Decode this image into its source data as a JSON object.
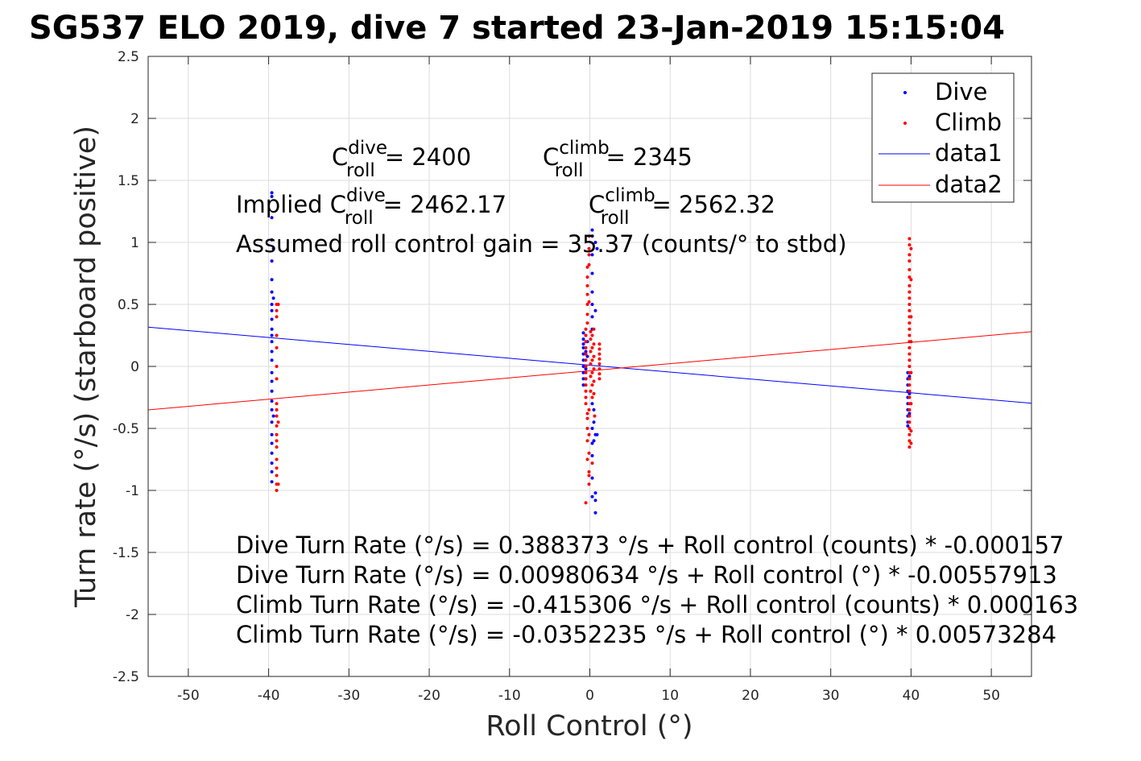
{
  "colors": {
    "dive": "#0000ff",
    "climb": "#ff0000",
    "grid": "#dcdcdc",
    "axis": "#262626"
  },
  "annotations": {
    "c_dive_base": "C",
    "c_dive_sup": "dive",
    "c_dive_sub": "roll",
    "c_dive_val": "= 2400",
    "c_climb_base": "C",
    "c_climb_sup": "climb",
    "c_climb_sub": "roll",
    "c_climb_val": "= 2345",
    "implied_prefix": "Implied C",
    "implied_dive_sup": "dive",
    "implied_dive_sub": "roll",
    "implied_dive_val": "= 2462.17",
    "implied_climb_base": "C",
    "implied_climb_sup": "climb",
    "implied_climb_sub": "roll",
    "implied_climb_val": "= 2562.32",
    "gain": "Assumed roll control gain = 35.37 (counts/° to stbd)",
    "eq1": "Dive Turn Rate (°/s) = 0.388373 °/s + Roll control (counts) * -0.000157",
    "eq2": "Dive Turn Rate (°/s) = 0.00980634 °/s + Roll control (°) * -0.00557913",
    "eq3": "Climb Turn Rate (°/s) = -0.415306 °/s + Roll control (counts) * 0.000163",
    "eq4": "Climb Turn Rate (°/s) = -0.0352235 °/s + Roll control (°) * 0.00573284"
  },
  "chart_data": {
    "type": "scatter",
    "title": "SG537 ELO 2019, dive 7 started 23-Jan-2019 15:15:04",
    "xlabel": "Roll Control (°)",
    "ylabel": "Turn rate (°/s) (starboard positive)",
    "xlim": [
      -55,
      55
    ],
    "ylim": [
      -2.5,
      2.5
    ],
    "xticks": [
      -50,
      -40,
      -30,
      -20,
      -10,
      0,
      10,
      20,
      30,
      40,
      50
    ],
    "yticks": [
      -2.5,
      -2,
      -1.5,
      -1,
      -0.5,
      0,
      0.5,
      1,
      1.5,
      2,
      2.5
    ],
    "grid": true,
    "legend_position": "top-right",
    "legend": [
      "Dive",
      "Climb",
      "data1",
      "data2"
    ],
    "series": [
      {
        "name": "Dive",
        "kind": "points",
        "color": "#0000ff",
        "points": [
          [
            -39.6,
            1.4
          ],
          [
            -39.6,
            1.37
          ],
          [
            -39.6,
            1.2
          ],
          [
            -39.6,
            1.02
          ],
          [
            -39.6,
            0.85
          ],
          [
            -39.6,
            0.7
          ],
          [
            -39.6,
            0.6
          ],
          [
            -39.6,
            0.5
          ],
          [
            -39.6,
            0.45
          ],
          [
            -39.6,
            0.38
          ],
          [
            -39.6,
            0.3
          ],
          [
            -39.6,
            0.25
          ],
          [
            -39.6,
            0.2
          ],
          [
            -39.6,
            0.12
          ],
          [
            -39.6,
            0.05
          ],
          [
            -39.6,
            -0.05
          ],
          [
            -39.6,
            -0.12
          ],
          [
            -39.6,
            -0.2
          ],
          [
            -39.6,
            -0.28
          ],
          [
            -39.6,
            -0.35
          ],
          [
            -39.6,
            -0.45
          ],
          [
            -39.6,
            -0.55
          ],
          [
            -39.6,
            -0.62
          ],
          [
            -39.6,
            -0.7
          ],
          [
            -39.6,
            -0.78
          ],
          [
            -39.6,
            -0.85
          ],
          [
            -39.6,
            -0.93
          ],
          [
            -39.4,
            0.95
          ],
          [
            -39.4,
            0.55
          ],
          [
            -39.4,
            -0.4
          ],
          [
            -0.8,
            0.27
          ],
          [
            -0.8,
            0.22
          ],
          [
            -0.8,
            0.18
          ],
          [
            -0.8,
            0.15
          ],
          [
            -0.8,
            0.1
          ],
          [
            -0.8,
            0.05
          ],
          [
            -0.8,
            0.0
          ],
          [
            -0.8,
            -0.05
          ],
          [
            -0.8,
            -0.1
          ],
          [
            -0.8,
            -0.15
          ],
          [
            -0.5,
            0.25
          ],
          [
            -0.5,
            0.12
          ],
          [
            -0.5,
            -0.02
          ],
          [
            -0.5,
            -0.1
          ],
          [
            -0.3,
            0.2
          ],
          [
            -0.3,
            0.08
          ],
          [
            0.3,
            1.1
          ],
          [
            0.3,
            1.05
          ],
          [
            0.3,
            0.9
          ],
          [
            0.3,
            0.75
          ],
          [
            0.3,
            0.6
          ],
          [
            0.3,
            0.5
          ],
          [
            0.3,
            0.4
          ],
          [
            0.3,
            0.3
          ],
          [
            0.3,
            -0.3
          ],
          [
            0.3,
            -0.5
          ],
          [
            0.3,
            -0.62
          ],
          [
            0.3,
            -0.72
          ],
          [
            0.3,
            -0.9
          ],
          [
            0.3,
            -1.05
          ],
          [
            0.5,
            -0.35
          ],
          [
            0.5,
            -0.45
          ],
          [
            0.5,
            -0.6
          ],
          [
            0.7,
            1.0
          ],
          [
            0.7,
            0.45
          ],
          [
            0.7,
            -0.55
          ],
          [
            0.7,
            -1.02
          ],
          [
            0.7,
            -1.08
          ],
          [
            0.7,
            -1.18
          ],
          [
            0.9,
            0.95
          ],
          [
            0.9,
            -0.55
          ],
          [
            39.6,
            -0.05
          ],
          [
            39.6,
            -0.1
          ],
          [
            39.6,
            -0.15
          ],
          [
            39.6,
            -0.2
          ],
          [
            39.6,
            -0.25
          ],
          [
            39.6,
            -0.3
          ],
          [
            39.6,
            -0.35
          ],
          [
            39.6,
            -0.4
          ],
          [
            39.6,
            -0.45
          ],
          [
            39.6,
            -0.48
          ],
          [
            39.8,
            -0.08
          ],
          [
            39.8,
            -0.22
          ],
          [
            39.8,
            -0.38
          ]
        ]
      },
      {
        "name": "Climb",
        "kind": "points",
        "color": "#ff0000",
        "points": [
          [
            -39.0,
            0.5
          ],
          [
            -39.0,
            0.45
          ],
          [
            -39.0,
            0.4
          ],
          [
            -39.0,
            0.25
          ],
          [
            -39.0,
            0.15
          ],
          [
            -39.0,
            0.0
          ],
          [
            -39.0,
            -0.1
          ],
          [
            -39.0,
            -0.3
          ],
          [
            -39.0,
            -0.35
          ],
          [
            -39.0,
            -0.4
          ],
          [
            -39.0,
            -0.48
          ],
          [
            -39.0,
            -0.55
          ],
          [
            -39.0,
            -0.6
          ],
          [
            -39.0,
            -0.65
          ],
          [
            -39.0,
            -0.75
          ],
          [
            -39.0,
            -0.82
          ],
          [
            -39.0,
            -0.88
          ],
          [
            -39.0,
            -0.95
          ],
          [
            -39.0,
            -1.0
          ],
          [
            -38.8,
            0.5
          ],
          [
            -38.8,
            -0.45
          ],
          [
            -38.8,
            -0.95
          ],
          [
            -0.5,
            0.3
          ],
          [
            -0.5,
            0.25
          ],
          [
            -0.5,
            0.2
          ],
          [
            -0.5,
            0.15
          ],
          [
            -0.5,
            0.1
          ],
          [
            -0.5,
            0.05
          ],
          [
            -0.5,
            0.0
          ],
          [
            -0.5,
            -0.05
          ],
          [
            -0.5,
            -0.1
          ],
          [
            -0.5,
            -0.15
          ],
          [
            -0.5,
            -0.2
          ],
          [
            -0.5,
            -0.25
          ],
          [
            -0.5,
            -0.3
          ],
          [
            -0.3,
            0.8
          ],
          [
            -0.3,
            0.72
          ],
          [
            -0.3,
            0.65
          ],
          [
            -0.3,
            0.58
          ],
          [
            -0.3,
            0.5
          ],
          [
            -0.3,
            0.42
          ],
          [
            -0.3,
            0.35
          ],
          [
            -0.3,
            -0.38
          ],
          [
            -0.3,
            -0.42
          ],
          [
            -0.3,
            -0.5
          ],
          [
            -0.3,
            -0.6
          ],
          [
            -0.3,
            -0.75
          ],
          [
            -0.1,
            1.05
          ],
          [
            -0.1,
            0.95
          ],
          [
            -0.1,
            0.9
          ],
          [
            -0.1,
            0.82
          ],
          [
            -0.1,
            0.52
          ],
          [
            -0.1,
            -0.35
          ],
          [
            -0.1,
            -0.55
          ],
          [
            -0.1,
            -0.7
          ],
          [
            -0.1,
            -0.85
          ],
          [
            -0.1,
            -0.88
          ],
          [
            0.1,
            0.28
          ],
          [
            0.1,
            0.22
          ],
          [
            0.1,
            0.12
          ],
          [
            0.1,
            0.02
          ],
          [
            0.1,
            -0.08
          ],
          [
            0.1,
            -0.2
          ],
          [
            0.3,
            0.25
          ],
          [
            0.3,
            0.15
          ],
          [
            0.3,
            0.05
          ],
          [
            0.3,
            -0.05
          ],
          [
            0.3,
            -0.15
          ],
          [
            0.3,
            -0.25
          ],
          [
            0.5,
            0.3
          ],
          [
            0.5,
            0.18
          ],
          [
            0.5,
            0.08
          ],
          [
            0.5,
            -0.02
          ],
          [
            0.5,
            -0.12
          ],
          [
            0.5,
            -0.22
          ],
          [
            -0.5,
            -1.1
          ],
          [
            -0.1,
            -0.95
          ],
          [
            0.3,
            -0.78
          ],
          [
            0.6,
            -0.4
          ],
          [
            1.2,
            0.18
          ],
          [
            1.2,
            0.14
          ],
          [
            1.2,
            0.1
          ],
          [
            1.2,
            0.06
          ],
          [
            1.2,
            0.02
          ],
          [
            1.2,
            -0.02
          ],
          [
            1.2,
            -0.06
          ],
          [
            1.2,
            -0.1
          ],
          [
            39.8,
            1.03
          ],
          [
            39.8,
            0.98
          ],
          [
            39.8,
            0.9
          ],
          [
            39.8,
            0.85
          ],
          [
            39.8,
            0.78
          ],
          [
            39.8,
            0.72
          ],
          [
            39.8,
            0.65
          ],
          [
            39.8,
            0.6
          ],
          [
            39.8,
            0.55
          ],
          [
            39.8,
            0.5
          ],
          [
            39.8,
            0.45
          ],
          [
            39.8,
            0.4
          ],
          [
            39.8,
            0.35
          ],
          [
            39.8,
            0.3
          ],
          [
            39.8,
            0.25
          ],
          [
            39.8,
            0.2
          ],
          [
            39.8,
            0.15
          ],
          [
            39.8,
            0.1
          ],
          [
            39.8,
            0.05
          ],
          [
            39.8,
            0.0
          ],
          [
            39.8,
            -0.05
          ],
          [
            39.8,
            -0.1
          ],
          [
            39.8,
            -0.15
          ],
          [
            39.8,
            -0.2
          ],
          [
            39.8,
            -0.25
          ],
          [
            39.8,
            -0.3
          ],
          [
            39.8,
            -0.35
          ],
          [
            39.8,
            -0.4
          ],
          [
            39.8,
            -0.45
          ],
          [
            39.8,
            -0.5
          ],
          [
            39.8,
            -0.55
          ],
          [
            39.8,
            -0.6
          ],
          [
            39.8,
            -0.65
          ],
          [
            40.0,
            0.95
          ],
          [
            40.0,
            0.7
          ],
          [
            40.0,
            0.4
          ],
          [
            40.0,
            0.2
          ],
          [
            40.0,
            -0.05
          ],
          [
            40.0,
            -0.3
          ],
          [
            40.0,
            -0.52
          ],
          [
            40.0,
            -0.62
          ]
        ]
      },
      {
        "name": "data1",
        "kind": "line",
        "color": "#0000ff",
        "x": [
          -55,
          55
        ],
        "y": [
          0.3167,
          -0.297
        ]
      },
      {
        "name": "data2",
        "kind": "line",
        "color": "#ff0000",
        "x": [
          -55,
          55
        ],
        "y": [
          -0.3505,
          0.2801
        ]
      }
    ]
  }
}
